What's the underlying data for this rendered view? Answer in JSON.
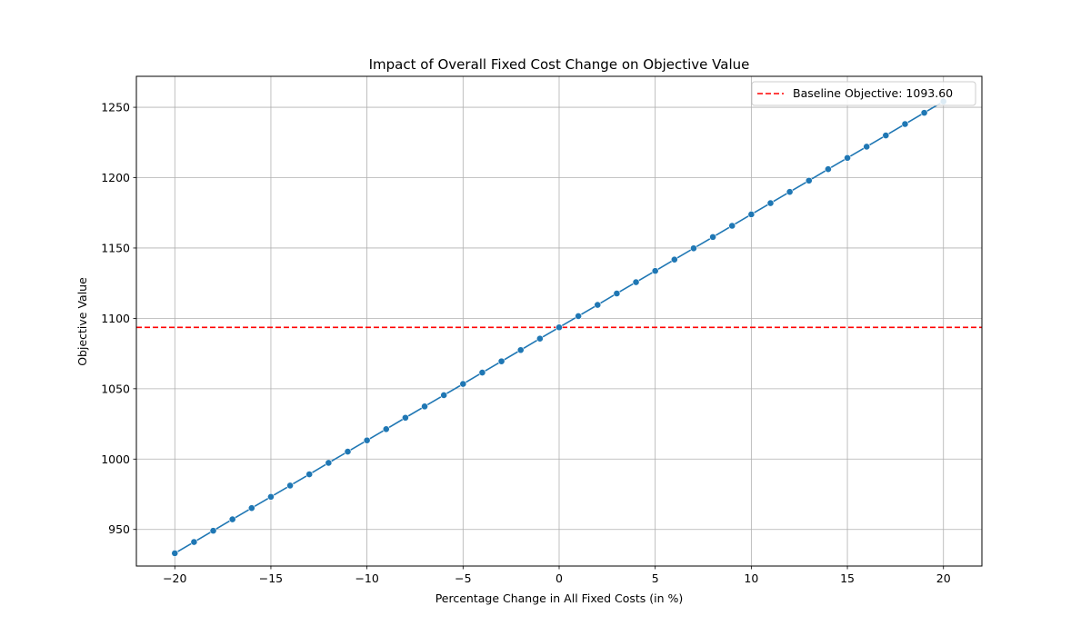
{
  "chart_data": {
    "type": "line",
    "title": "Impact of Overall Fixed Cost Change on Objective Value",
    "xlabel": "Percentage Change in All Fixed Costs (in %)",
    "ylabel": "Objective Value",
    "xlim": [
      -22,
      22
    ],
    "ylim": [
      924,
      1272
    ],
    "xticks": [
      -20,
      -15,
      -10,
      -5,
      0,
      5,
      10,
      15,
      20
    ],
    "xtick_labels": [
      "−20",
      "−15",
      "−10",
      "−5",
      "0",
      "5",
      "10",
      "15",
      "20"
    ],
    "yticks": [
      950,
      1000,
      1050,
      1100,
      1150,
      1200,
      1250
    ],
    "ytick_labels": [
      "950",
      "1000",
      "1050",
      "1100",
      "1150",
      "1200",
      "1250"
    ],
    "grid": true,
    "legend_position": "top-right",
    "series": [
      {
        "color": "#1f77b4",
        "marker": "circle",
        "x": [
          -20,
          -19,
          -18,
          -17,
          -16,
          -15,
          -14,
          -13,
          -12,
          -11,
          -10,
          -9,
          -8,
          -7,
          -6,
          -5,
          -4,
          -3,
          -2,
          -1,
          0,
          1,
          2,
          3,
          4,
          5,
          6,
          7,
          8,
          9,
          10,
          11,
          12,
          13,
          14,
          15,
          16,
          17,
          18,
          19,
          20
        ],
        "y": [
          933.1,
          941.1,
          949.1,
          957.2,
          965.2,
          973.2,
          981.2,
          989.2,
          997.3,
          1005.3,
          1013.3,
          1021.3,
          1029.4,
          1037.4,
          1045.4,
          1053.4,
          1061.5,
          1069.5,
          1077.5,
          1085.6,
          1093.6,
          1101.6,
          1109.6,
          1117.7,
          1125.7,
          1133.7,
          1141.8,
          1149.8,
          1157.8,
          1165.8,
          1173.9,
          1181.9,
          1189.9,
          1197.9,
          1206.0,
          1214.0,
          1222.0,
          1230.0,
          1238.1,
          1246.1,
          1254.1
        ]
      }
    ],
    "reference_line": {
      "label": "Baseline Objective: 1093.60",
      "y": 1093.6,
      "color": "#ff0000",
      "style": "dashed"
    }
  }
}
